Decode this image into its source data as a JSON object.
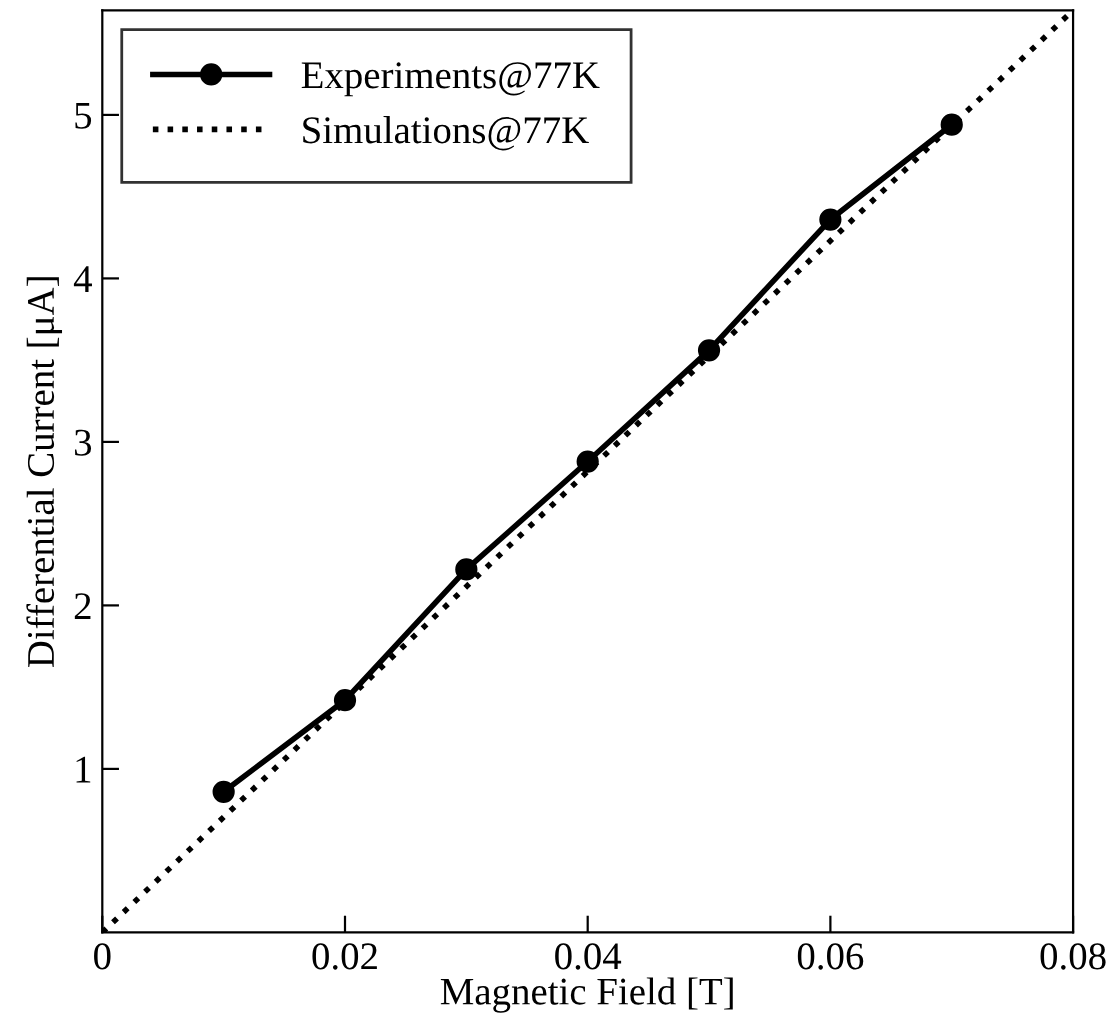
{
  "chart_data": {
    "type": "line",
    "xlabel": "Magnetic Field [T]",
    "ylabel": "Differential Current [μA]",
    "xlim": [
      0,
      0.08
    ],
    "ylim": [
      0,
      5.64
    ],
    "xticks": [
      0,
      0.02,
      0.04,
      0.06,
      0.08
    ],
    "yticks": [
      1,
      2,
      3,
      4,
      5
    ],
    "grid": false,
    "legend": "top left",
    "series": [
      {
        "name": "Experiments@77K",
        "color": "#000000",
        "marker": "circle",
        "line_style": "solid",
        "x": [
          0.01,
          0.02,
          0.03,
          0.04,
          0.05,
          0.06,
          0.07
        ],
        "values": [
          0.86,
          1.42,
          2.22,
          2.88,
          3.56,
          4.36,
          4.94
        ]
      },
      {
        "name": "Simulations@77K",
        "color": "#000000",
        "marker": "none",
        "line_style": "dotted",
        "x": [
          0,
          0.08
        ],
        "values": [
          0,
          5.64
        ]
      }
    ]
  }
}
